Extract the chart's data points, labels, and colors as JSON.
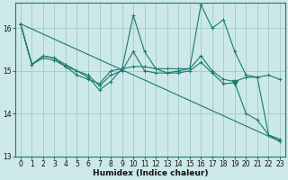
{
  "title": "",
  "xlabel": "Humidex (Indice chaleur)",
  "bg_color": "#cce8e8",
  "grid_color": "#aacccc",
  "line_color": "#1a7a6e",
  "xlim": [
    -0.5,
    23.5
  ],
  "ylim": [
    13.0,
    16.6
  ],
  "yticks": [
    13,
    14,
    15,
    16
  ],
  "xticks": [
    0,
    1,
    2,
    3,
    4,
    5,
    6,
    7,
    8,
    9,
    10,
    11,
    12,
    13,
    14,
    15,
    16,
    17,
    18,
    19,
    20,
    21,
    22,
    23
  ],
  "series1_x": [
    0,
    1,
    2,
    3,
    4,
    5,
    6,
    7,
    8,
    9,
    10,
    11,
    12,
    13,
    14,
    15,
    16,
    17,
    18,
    19,
    20,
    21,
    22,
    23
  ],
  "series1_y": [
    16.1,
    15.15,
    15.35,
    15.3,
    15.15,
    15.0,
    14.85,
    14.55,
    14.75,
    15.05,
    16.3,
    15.45,
    15.05,
    15.05,
    15.05,
    15.05,
    16.55,
    16.0,
    16.2,
    15.45,
    14.9,
    14.85,
    14.9,
    14.8
  ],
  "series2_x": [
    0,
    1,
    2,
    3,
    4,
    5,
    6,
    7,
    8,
    9,
    10,
    11,
    12,
    13,
    14,
    15,
    16,
    17,
    18,
    19,
    20,
    21,
    22,
    23
  ],
  "series2_y": [
    16.1,
    15.15,
    15.35,
    15.3,
    15.1,
    14.9,
    14.8,
    14.7,
    15.0,
    15.05,
    15.1,
    15.1,
    15.05,
    14.95,
    15.0,
    15.05,
    15.35,
    15.0,
    14.8,
    14.75,
    14.85,
    14.85,
    13.5,
    13.4
  ],
  "series3_x": [
    0,
    1,
    2,
    3,
    4,
    5,
    6,
    7,
    8,
    9,
    10,
    11,
    12,
    13,
    14,
    15,
    16,
    17,
    18,
    19,
    20,
    21,
    22,
    23
  ],
  "series3_y": [
    16.1,
    15.15,
    15.3,
    15.25,
    15.1,
    15.0,
    14.9,
    14.65,
    14.9,
    15.0,
    15.45,
    15.0,
    14.95,
    14.95,
    14.95,
    15.0,
    15.2,
    14.95,
    14.7,
    14.72,
    14.0,
    13.85,
    13.5,
    13.35
  ],
  "trend_x": [
    0,
    23
  ],
  "trend_y": [
    16.1,
    13.35
  ],
  "marker_down_x": [
    19
  ],
  "marker_down_y": [
    14.72
  ]
}
